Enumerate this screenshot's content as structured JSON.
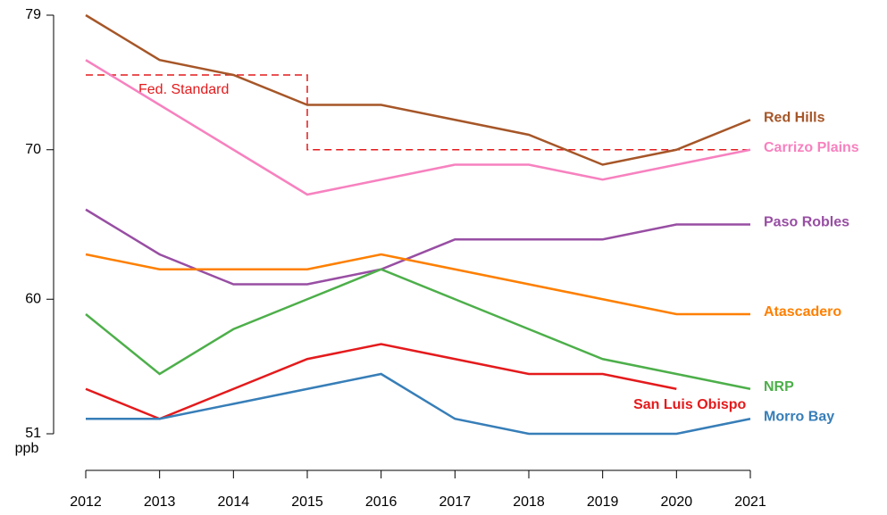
{
  "chart_data": {
    "type": "line",
    "x": [
      2012,
      2013,
      2014,
      2015,
      2016,
      2017,
      2018,
      2019,
      2020,
      2021
    ],
    "xlim": [
      2012,
      2021
    ],
    "xticks": [
      2012,
      2013,
      2014,
      2015,
      2016,
      2017,
      2018,
      2019,
      2020,
      2021
    ],
    "ylim": [
      51,
      79
    ],
    "yticks": [
      51,
      60,
      70,
      79
    ],
    "y_unit": "ppb",
    "series": [
      {
        "name": "Red Hills",
        "color": "#a65628",
        "values": [
          79,
          76,
          75,
          73,
          73,
          72,
          71,
          69,
          70,
          72
        ]
      },
      {
        "name": "Carrizo Plains",
        "color": "#f781bf",
        "values": [
          76,
          73,
          70,
          67,
          68,
          69,
          69,
          68,
          69,
          70
        ]
      },
      {
        "name": "Paso Robles",
        "color": "#984ea3",
        "values": [
          66,
          63,
          61,
          61,
          62,
          64,
          64,
          64,
          65,
          65
        ]
      },
      {
        "name": "Atascadero",
        "color": "#ff7f00",
        "values": [
          63,
          62,
          62,
          62,
          63,
          62,
          61,
          60,
          59,
          59
        ]
      },
      {
        "name": "NRP",
        "color": "#4daf4a",
        "values": [
          59,
          55,
          58,
          60,
          62,
          60,
          58,
          56,
          55,
          54
        ]
      },
      {
        "name": "San Luis Obispo",
        "color": "#e41a1c",
        "values": [
          54,
          52,
          54,
          56,
          57,
          56,
          55,
          55,
          54,
          null
        ]
      },
      {
        "name": "Morro Bay",
        "color": "#377eb8",
        "values": [
          52,
          52,
          53,
          54,
          55,
          52,
          51,
          51,
          51,
          52
        ]
      }
    ],
    "standard": {
      "label": "Fed. Standard",
      "color": "#e41a1c",
      "steps": [
        {
          "from": 2012,
          "to": 2015,
          "value": 75
        },
        {
          "from": 2015,
          "to": 2021,
          "value": 70
        }
      ]
    }
  }
}
